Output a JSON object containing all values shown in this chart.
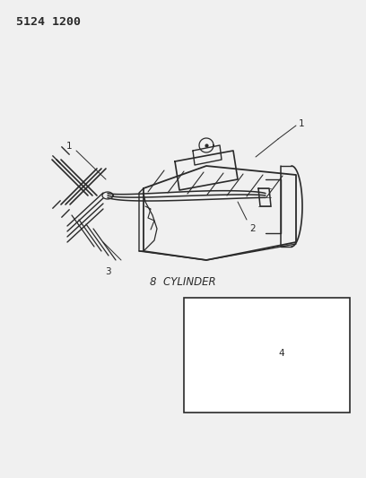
{
  "title_code": "5124 1200",
  "background_color": "#f0f0f0",
  "line_color": "#2a2a2a",
  "label_fontsize": 7.5,
  "cylinder_text": "8  CYLINDER",
  "cylinder_fontsize": 8.5
}
